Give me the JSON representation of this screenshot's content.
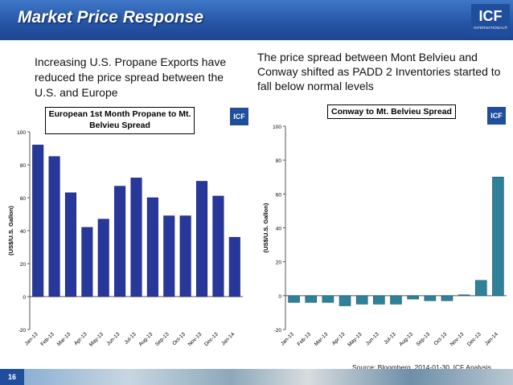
{
  "slide": {
    "title": "Market Price Response",
    "logo_text": "ICF",
    "logo_subtext": "INTERNATIONAL®",
    "mini_logo_text": "ICF",
    "page_number": "16",
    "source": "Source: Bloomberg, 2014-01-30, ICF Analysis"
  },
  "left_text": "Increasing U.S. Propane Exports have reduced the price spread between the U.S. and Europe",
  "right_text": "The price spread between Mont Belvieu and Conway shifted as PADD 2 Inventories started to fall below normal levels",
  "colors": {
    "title_bar": "#2553a4",
    "left_bars": "#27379a",
    "right_bars": "#2f8199",
    "logo": "#1f4f9c"
  },
  "chart_data": [
    {
      "type": "bar",
      "title": "European 1st Month Propane  to Mt. Belvieu Spread",
      "ylabel": "(US$/U.S. Gallon)",
      "xlabel": "",
      "categories": [
        "Jan-13",
        "Feb-13",
        "Mar-13",
        "Apr-13",
        "May-13",
        "Jun-13",
        "Jul-13",
        "Aug-13",
        "Sep-13",
        "Oct-13",
        "Nov-13",
        "Dec-13",
        "Jan-14"
      ],
      "values": [
        92,
        85,
        63,
        42,
        47,
        67,
        72,
        60,
        49,
        49,
        70,
        61,
        36
      ],
      "ylim": [
        -20,
        100
      ],
      "yticks": [
        "-20",
        "0",
        "20",
        "40",
        "60",
        "80",
        "100"
      ],
      "grid": false,
      "legend": "none"
    },
    {
      "type": "bar",
      "title": "Conway to Mt. Belvieu Spread",
      "ylabel": "(US$/U.S. Gallon)",
      "xlabel": "",
      "categories": [
        "Jan-13",
        "Feb-13",
        "Mar-13",
        "Apr-13",
        "May-13",
        "Jun-13",
        "Jul-13",
        "Aug-13",
        "Sep-13",
        "Oct-13",
        "Nov-13",
        "Dec-13",
        "Jan-14"
      ],
      "values": [
        -4,
        -4,
        -4,
        -6,
        -5,
        -5,
        -5,
        -2,
        -3,
        -3,
        0.5,
        9,
        70
      ],
      "ylim": [
        -20,
        100
      ],
      "yticks": [
        "-20",
        "0",
        "20",
        "40",
        "60",
        "80",
        "100"
      ],
      "grid": false,
      "legend": "none"
    }
  ]
}
